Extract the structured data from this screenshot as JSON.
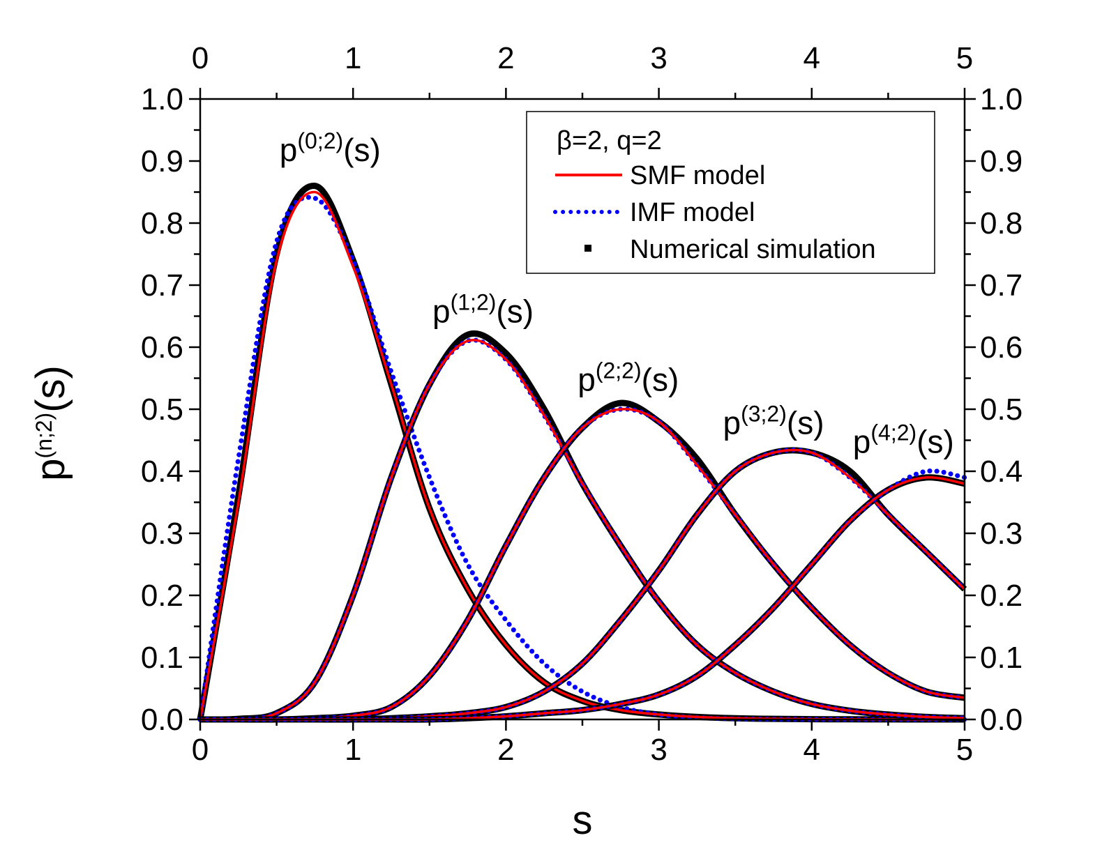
{
  "chart_data": {
    "type": "line",
    "xlabel": "s",
    "ylabel_base": "p",
    "ylabel_sup": "(n;2)",
    "ylabel_tail": "(s)",
    "xlim": [
      0,
      5
    ],
    "ylim": [
      0,
      1
    ],
    "x_ticks": [
      "0",
      "1",
      "2",
      "3",
      "4",
      "5"
    ],
    "y_ticks": [
      "0.0",
      "0.1",
      "0.2",
      "0.3",
      "0.4",
      "0.5",
      "0.6",
      "0.7",
      "0.8",
      "0.9",
      "1.0"
    ],
    "legend": {
      "header": "β=2, q=2",
      "entries": [
        {
          "label": "SMF model",
          "style": "solid",
          "color": "#ff0000"
        },
        {
          "label": "IMF model",
          "style": "dotted",
          "color": "#0000ff"
        },
        {
          "label": "Numerical simulation",
          "style": "square",
          "color": "#000000"
        }
      ]
    },
    "x": [
      0,
      0.25,
      0.5,
      0.75,
      1.0,
      1.25,
      1.5,
      1.75,
      2.0,
      2.25,
      2.5,
      2.75,
      3.0,
      3.25,
      3.5,
      3.75,
      4.0,
      4.25,
      4.5,
      4.75,
      5.0
    ],
    "series": [
      {
        "name": "p(0;2)(s)",
        "label_base": "p",
        "label_sup": "(0;2)",
        "label_tail": "(s)",
        "smf": [
          0,
          0.35,
          0.74,
          0.85,
          0.73,
          0.54,
          0.34,
          0.21,
          0.12,
          0.06,
          0.03,
          0.015,
          0.008,
          0.004,
          0.002,
          0.001,
          0.0005,
          0.0002,
          0.0001,
          0.0,
          0.0
        ],
        "imf": [
          0,
          0.42,
          0.77,
          0.84,
          0.74,
          0.56,
          0.39,
          0.25,
          0.16,
          0.09,
          0.045,
          0.02,
          0.008,
          0.003,
          0.001,
          0.0005,
          0.0002,
          0.0001,
          0.0,
          0.0,
          0.0
        ],
        "sim": [
          0,
          0.36,
          0.75,
          0.86,
          0.74,
          0.54,
          0.34,
          0.21,
          0.12,
          0.06,
          0.03,
          0.015,
          0.008,
          0.004,
          0.002,
          0.001,
          0.0005,
          0.0002,
          0.0001,
          0.0,
          0.0
        ]
      },
      {
        "name": "p(1;2)(s)",
        "label_base": "p",
        "label_sup": "(1;2)",
        "label_tail": "(s)",
        "smf": [
          0,
          0.001,
          0.01,
          0.06,
          0.2,
          0.39,
          0.54,
          0.61,
          0.58,
          0.49,
          0.38,
          0.28,
          0.19,
          0.12,
          0.075,
          0.045,
          0.025,
          0.014,
          0.008,
          0.004,
          0.002
        ],
        "imf": [
          0,
          0.001,
          0.01,
          0.06,
          0.2,
          0.39,
          0.54,
          0.61,
          0.58,
          0.49,
          0.38,
          0.28,
          0.19,
          0.12,
          0.075,
          0.045,
          0.025,
          0.014,
          0.008,
          0.004,
          0.002
        ],
        "sim": [
          0,
          0.001,
          0.01,
          0.06,
          0.2,
          0.39,
          0.54,
          0.62,
          0.59,
          0.5,
          0.38,
          0.28,
          0.19,
          0.12,
          0.075,
          0.045,
          0.025,
          0.014,
          0.008,
          0.004,
          0.002
        ]
      },
      {
        "name": "p(2;2)(s)",
        "label_base": "p",
        "label_sup": "(2;2)",
        "label_tail": "(s)",
        "smf": [
          0,
          0.0,
          0.0,
          0.002,
          0.006,
          0.02,
          0.07,
          0.16,
          0.28,
          0.39,
          0.47,
          0.5,
          0.48,
          0.41,
          0.33,
          0.25,
          0.18,
          0.12,
          0.075,
          0.045,
          0.035
        ],
        "imf": [
          0,
          0.0,
          0.0,
          0.002,
          0.006,
          0.02,
          0.07,
          0.16,
          0.28,
          0.39,
          0.47,
          0.5,
          0.48,
          0.41,
          0.33,
          0.25,
          0.18,
          0.12,
          0.075,
          0.045,
          0.035
        ],
        "sim": [
          0,
          0.0,
          0.0,
          0.002,
          0.006,
          0.02,
          0.07,
          0.16,
          0.28,
          0.39,
          0.47,
          0.51,
          0.48,
          0.42,
          0.33,
          0.25,
          0.18,
          0.12,
          0.075,
          0.045,
          0.035
        ]
      },
      {
        "name": "p(3;2)(s)",
        "label_base": "p",
        "label_sup": "(3;2)",
        "label_tail": "(s)",
        "smf": [
          0,
          0.0,
          0.0,
          0.0,
          0.0,
          0.002,
          0.005,
          0.01,
          0.02,
          0.045,
          0.09,
          0.16,
          0.24,
          0.33,
          0.4,
          0.43,
          0.43,
          0.39,
          0.33,
          0.27,
          0.21
        ],
        "imf": [
          0,
          0.0,
          0.0,
          0.0,
          0.0,
          0.002,
          0.005,
          0.01,
          0.02,
          0.045,
          0.09,
          0.16,
          0.24,
          0.33,
          0.4,
          0.43,
          0.43,
          0.39,
          0.33,
          0.27,
          0.21
        ],
        "sim": [
          0,
          0.0,
          0.0,
          0.0,
          0.0,
          0.002,
          0.005,
          0.01,
          0.02,
          0.045,
          0.09,
          0.16,
          0.24,
          0.33,
          0.4,
          0.43,
          0.43,
          0.4,
          0.33,
          0.27,
          0.21
        ]
      },
      {
        "name": "p(4;2)(s)",
        "label_base": "p",
        "label_sup": "(4;2)",
        "label_tail": "(s)",
        "smf": [
          0,
          0.0,
          0.0,
          0.0,
          0.0,
          0.0,
          0.0,
          0.002,
          0.005,
          0.01,
          0.015,
          0.025,
          0.04,
          0.07,
          0.12,
          0.18,
          0.25,
          0.32,
          0.37,
          0.39,
          0.38
        ],
        "imf": [
          0,
          0.0,
          0.0,
          0.0,
          0.0,
          0.0,
          0.0,
          0.002,
          0.005,
          0.01,
          0.015,
          0.025,
          0.04,
          0.07,
          0.12,
          0.18,
          0.25,
          0.32,
          0.37,
          0.4,
          0.39
        ],
        "sim": [
          0,
          0.0,
          0.0,
          0.0,
          0.0,
          0.0,
          0.0,
          0.002,
          0.005,
          0.01,
          0.015,
          0.025,
          0.04,
          0.07,
          0.12,
          0.18,
          0.25,
          0.32,
          0.37,
          0.39,
          0.38
        ]
      }
    ]
  }
}
